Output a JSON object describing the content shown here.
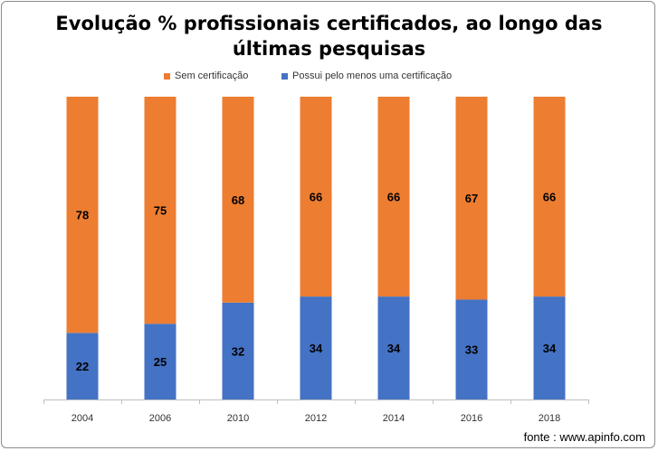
{
  "chart_data": {
    "type": "bar",
    "stacked": true,
    "title": "Evolução % profissionais certificados, ao longo das\núltimas pesquisas",
    "categories": [
      "2004",
      "2006",
      "2010",
      "2012",
      "2014",
      "2016",
      "2018"
    ],
    "series": [
      {
        "name": "Possui pelo menos uma certificação",
        "values": [
          22,
          25,
          32,
          34,
          34,
          33,
          34
        ],
        "color": "#4472c4"
      },
      {
        "name": "Sem certificação",
        "values": [
          78,
          75,
          68,
          66,
          66,
          67,
          66
        ],
        "color": "#ed7d31"
      }
    ],
    "ylim": [
      0,
      100
    ],
    "grid": false,
    "data_labels": true,
    "legend_position": "top"
  },
  "footer": {
    "source": "fonte : www.apinfo.com"
  }
}
